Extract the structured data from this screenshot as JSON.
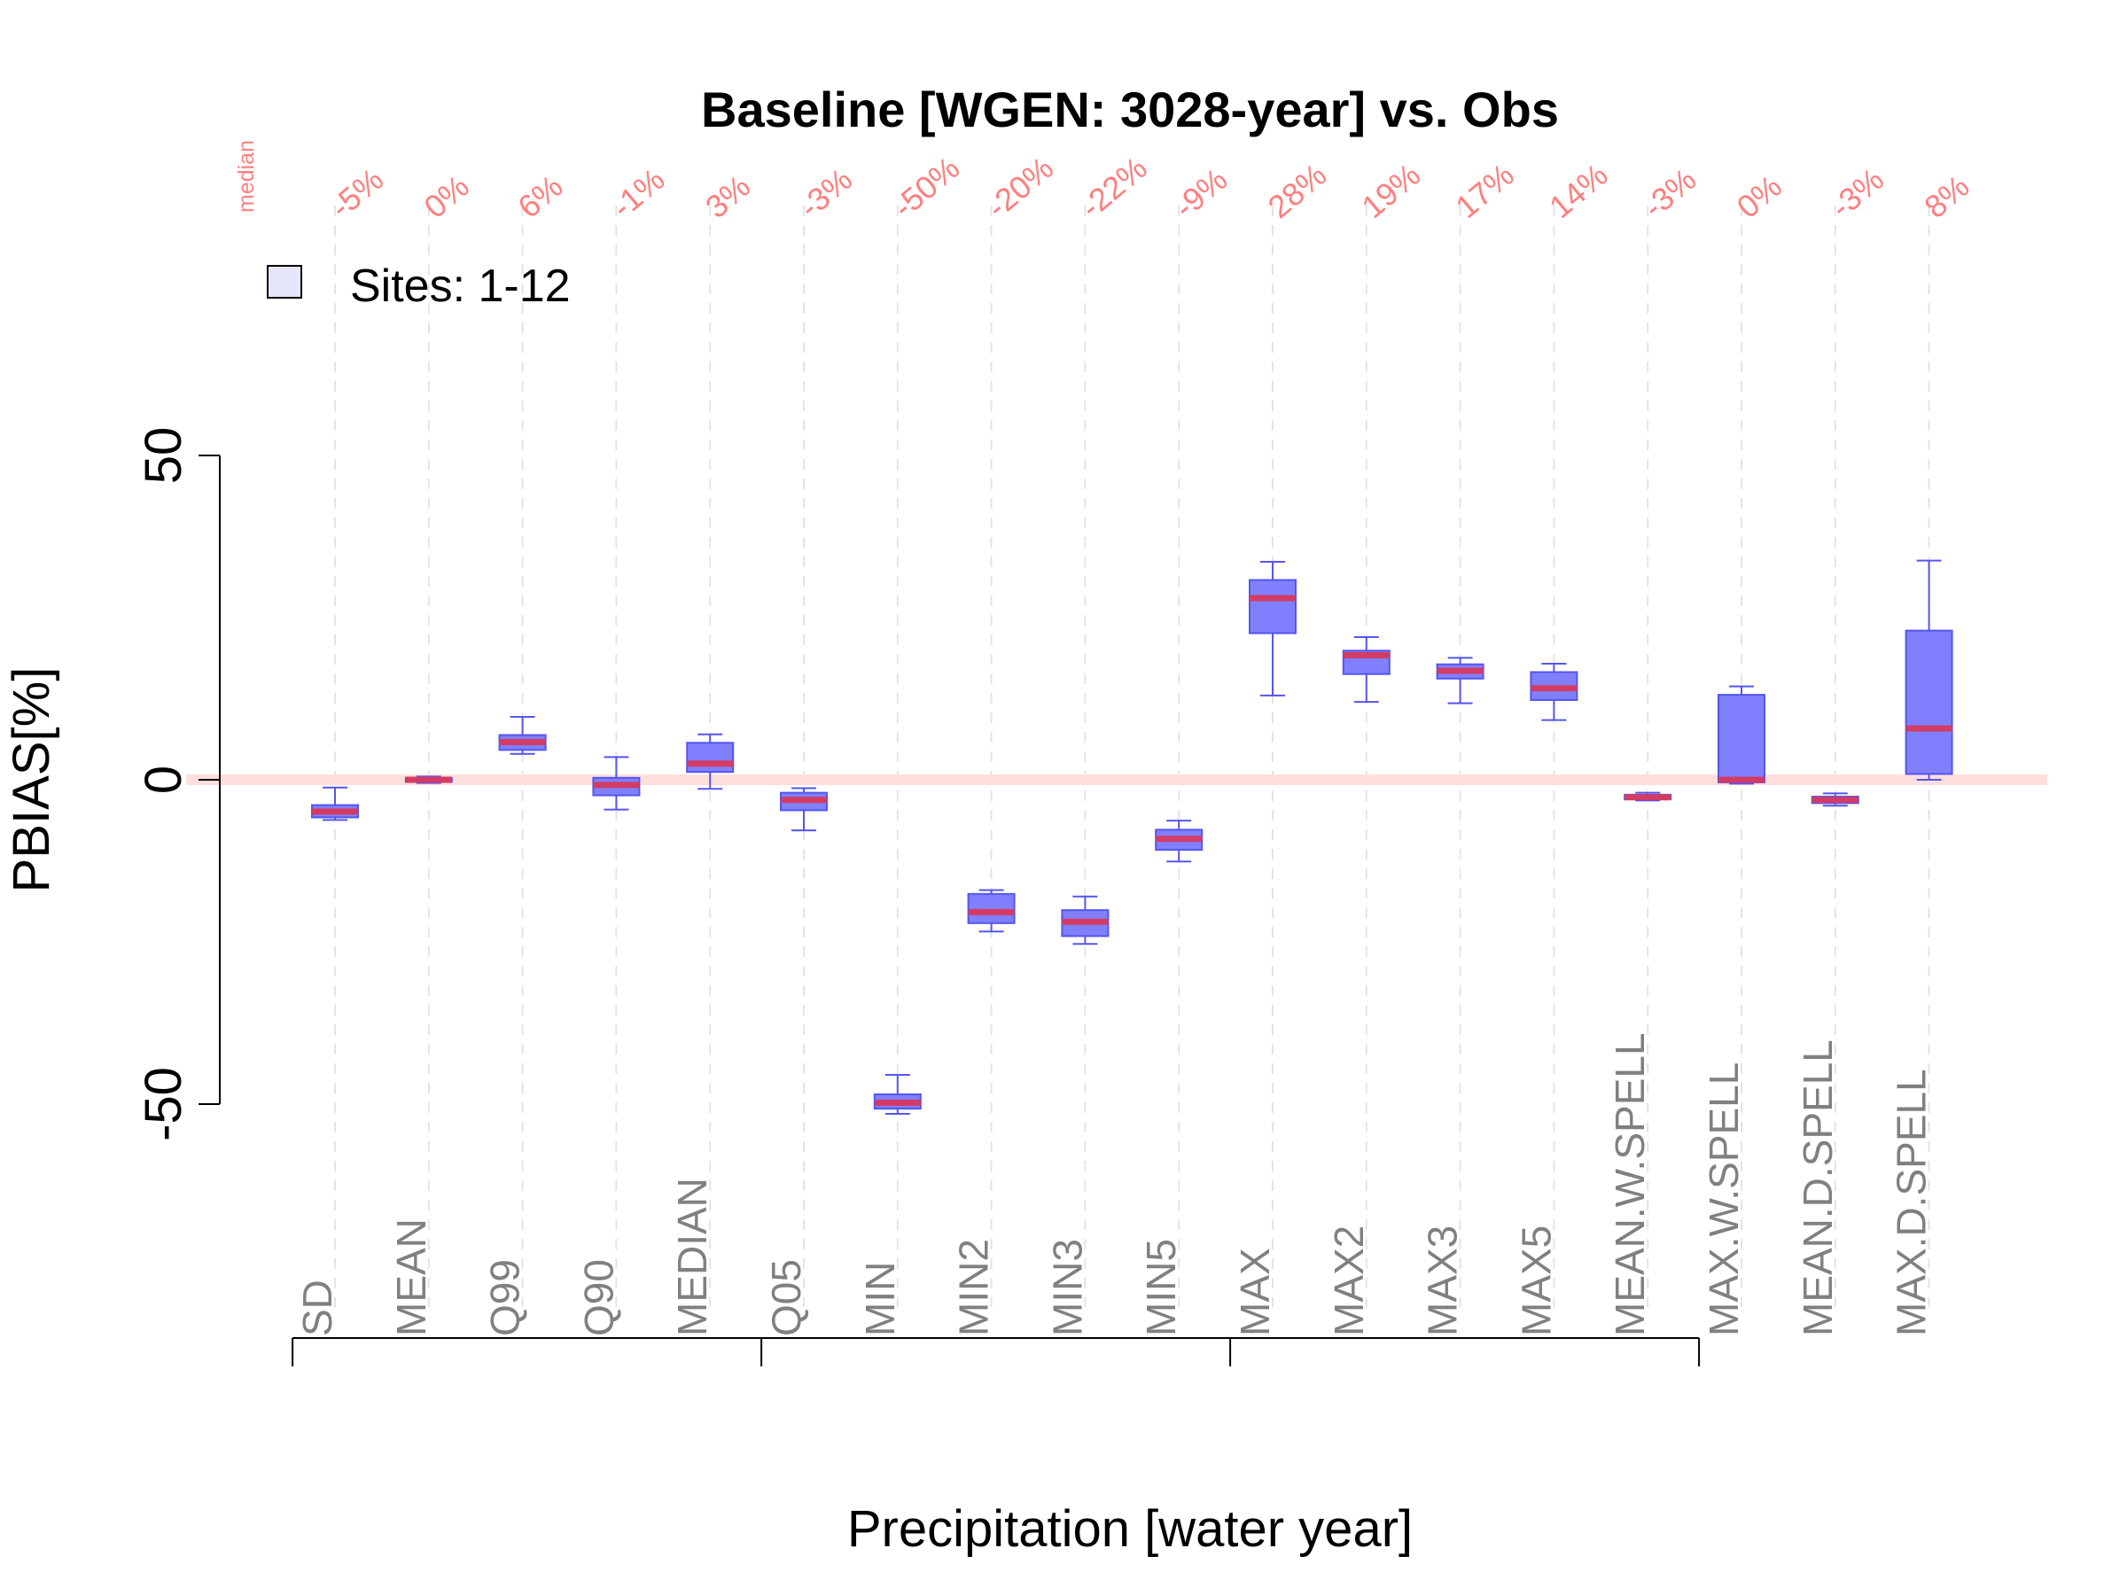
{
  "chart_data": {
    "type": "box",
    "title": "Baseline [WGEN: 3028-year] vs. Obs",
    "xlabel": "Precipitation [water year]",
    "ylabel": "PBIAS[%]",
    "yticks": [
      "-50",
      "0",
      "50"
    ],
    "ylim": [
      -85,
      105
    ],
    "reference_line": 0,
    "legend": {
      "label": "Sites: 1-12",
      "position": "top-left"
    },
    "median_header": "median",
    "categories": [
      "SD",
      "MEAN",
      "Q99",
      "Q90",
      "MEDIAN",
      "Q05",
      "MIN",
      "MIN2",
      "MIN3",
      "MIN5",
      "MAX",
      "MAX2",
      "MAX3",
      "MAX5",
      "MEAN.W.SPELL",
      "MAX.W.SPELL",
      "MEAN.D.SPELL",
      "MAX.D.SPELL"
    ],
    "median_labels": [
      "-5%",
      "0%",
      "6%",
      "-1%",
      "3%",
      "-3%",
      "-50%",
      "-20%",
      "-22%",
      "-9%",
      "28%",
      "19%",
      "17%",
      "14%",
      "-3%",
      "0%",
      "-3%",
      "8%"
    ],
    "boxes": [
      {
        "min": -6.2,
        "q1": -5.8,
        "median": -4.9,
        "q3": -3.9,
        "max": -1.2
      },
      {
        "min": -0.5,
        "q1": -0.3,
        "median": 0.0,
        "q3": 0.3,
        "max": 0.5
      },
      {
        "min": 4.0,
        "q1": 4.6,
        "median": 5.8,
        "q3": 6.9,
        "max": 9.7
      },
      {
        "min": -4.6,
        "q1": -2.4,
        "median": -0.8,
        "q3": 0.3,
        "max": 3.5
      },
      {
        "min": -1.4,
        "q1": 1.2,
        "median": 2.5,
        "q3": 5.7,
        "max": 7.0
      },
      {
        "min": -7.8,
        "q1": -4.7,
        "median": -3.1,
        "q3": -2.0,
        "max": -1.3
      },
      {
        "min": -51.5,
        "q1": -50.7,
        "median": -49.8,
        "q3": -48.5,
        "max": -45.5
      },
      {
        "min": -23.4,
        "q1": -22.1,
        "median": -20.4,
        "q3": -17.6,
        "max": -17.0
      },
      {
        "min": -25.3,
        "q1": -24.1,
        "median": -21.9,
        "q3": -20.1,
        "max": -18.0
      },
      {
        "min": -12.6,
        "q1": -10.8,
        "median": -9.1,
        "q3": -7.7,
        "max": -6.3
      },
      {
        "min": 13.0,
        "q1": 22.6,
        "median": 28.0,
        "q3": 30.8,
        "max": 33.6
      },
      {
        "min": 12.0,
        "q1": 16.3,
        "median": 19.2,
        "q3": 19.9,
        "max": 22.0
      },
      {
        "min": 11.8,
        "q1": 15.6,
        "median": 16.8,
        "q3": 17.8,
        "max": 18.8
      },
      {
        "min": 9.2,
        "q1": 12.3,
        "median": 14.1,
        "q3": 16.6,
        "max": 17.9
      },
      {
        "min": -3.2,
        "q1": -3.0,
        "median": -2.7,
        "q3": -2.3,
        "max": -2.0
      },
      {
        "min": -0.6,
        "q1": -0.4,
        "median": 0.0,
        "q3": 13.1,
        "max": 14.4
      },
      {
        "min": -4.0,
        "q1": -3.6,
        "median": -3.1,
        "q3": -2.6,
        "max": -2.1
      },
      {
        "min": 0.0,
        "q1": 0.9,
        "median": 7.9,
        "q3": 23.0,
        "max": 33.8
      }
    ],
    "group_boundaries_after": [
      4,
      9,
      14
    ],
    "colors": {
      "box_fill": "#8080ff",
      "box_stroke": "#5555ee",
      "median_line": "#d23c64",
      "zero_line": "#ffdede",
      "grid": "#e4e4e4",
      "legend_fill": "#e6e6fa",
      "median_text": "#ff7f7f",
      "category_text": "#808080"
    }
  }
}
